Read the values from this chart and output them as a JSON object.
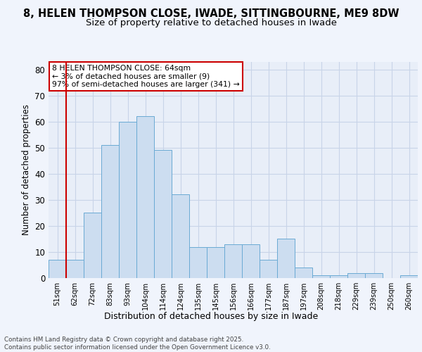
{
  "title1": "8, HELEN THOMPSON CLOSE, IWADE, SITTINGBOURNE, ME9 8DW",
  "title2": "Size of property relative to detached houses in Iwade",
  "xlabel": "Distribution of detached houses by size in Iwade",
  "ylabel": "Number of detached properties",
  "categories": [
    "51sqm",
    "62sqm",
    "72sqm",
    "83sqm",
    "93sqm",
    "104sqm",
    "114sqm",
    "124sqm",
    "135sqm",
    "145sqm",
    "156sqm",
    "166sqm",
    "177sqm",
    "187sqm",
    "197sqm",
    "208sqm",
    "218sqm",
    "229sqm",
    "239sqm",
    "250sqm",
    "260sqm"
  ],
  "values": [
    7,
    7,
    25,
    51,
    60,
    62,
    49,
    32,
    12,
    12,
    13,
    13,
    7,
    15,
    4,
    1,
    1,
    2,
    2,
    0,
    1
  ],
  "highlight_index": 1,
  "bar_color": "#ccddf0",
  "bar_edge_color": "#6aaad4",
  "highlight_bar_edge_color": "#cc0000",
  "ylim": [
    0,
    83
  ],
  "yticks": [
    0,
    10,
    20,
    30,
    40,
    50,
    60,
    70,
    80
  ],
  "annotation_text": "8 HELEN THOMPSON CLOSE: 64sqm\n← 3% of detached houses are smaller (9)\n97% of semi-detached houses are larger (341) →",
  "annotation_box_color": "#ffffff",
  "annotation_box_edge": "#cc0000",
  "grid_color": "#c8d4e8",
  "background_color": "#e8eef8",
  "fig_background_color": "#f0f4fc",
  "footer_text": "Contains HM Land Registry data © Crown copyright and database right 2025.\nContains public sector information licensed under the Open Government Licence v3.0.",
  "title1_fontsize": 10.5,
  "title2_fontsize": 9.5
}
